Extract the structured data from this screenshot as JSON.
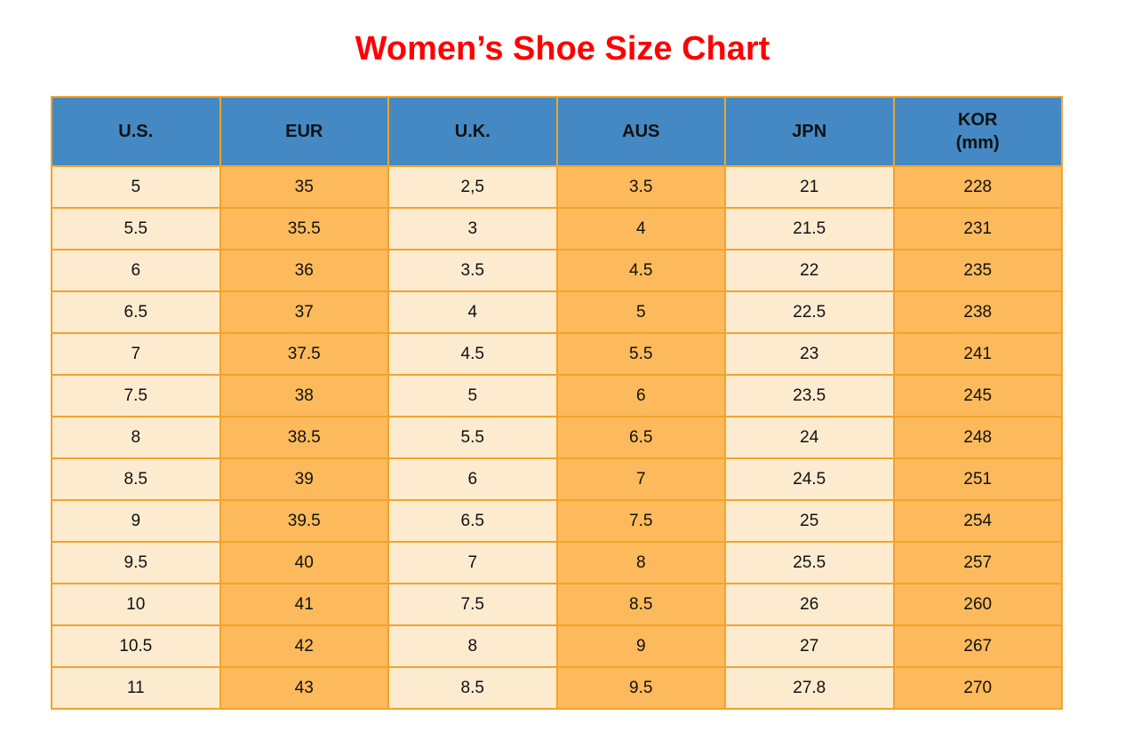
{
  "title": "Women’s Shoe Size Chart",
  "colors": {
    "header_bg": "#4489C4",
    "row_light": "#FDEBD0",
    "row_orange": "#FCBA5C",
    "border": "#F2A32B",
    "title": "#FF0000",
    "text": "#111111"
  },
  "table": {
    "columns": [
      {
        "key": "us",
        "label": "U.S."
      },
      {
        "key": "eur",
        "label": "EUR"
      },
      {
        "key": "uk",
        "label": "U.K."
      },
      {
        "key": "aus",
        "label": "AUS"
      },
      {
        "key": "jpn",
        "label": "JPN"
      },
      {
        "key": "kor",
        "label": "KOR",
        "sublabel": "(mm)"
      }
    ],
    "column_fills": [
      "light",
      "orange",
      "light",
      "orange",
      "light",
      "orange"
    ],
    "rows": [
      [
        "5",
        "35",
        "2,5",
        "3.5",
        "21",
        "228"
      ],
      [
        "5.5",
        "35.5",
        "3",
        "4",
        "21.5",
        "231"
      ],
      [
        "6",
        "36",
        "3.5",
        "4.5",
        "22",
        "235"
      ],
      [
        "6.5",
        "37",
        "4",
        "5",
        "22.5",
        "238"
      ],
      [
        "7",
        "37.5",
        "4.5",
        "5.5",
        "23",
        "241"
      ],
      [
        "7.5",
        "38",
        "5",
        "6",
        "23.5",
        "245"
      ],
      [
        "8",
        "38.5",
        "5.5",
        "6.5",
        "24",
        "248"
      ],
      [
        "8.5",
        "39",
        "6",
        "7",
        "24.5",
        "251"
      ],
      [
        "9",
        "39.5",
        "6.5",
        "7.5",
        "25",
        "254"
      ],
      [
        "9.5",
        "40",
        "7",
        "8",
        "25.5",
        "257"
      ],
      [
        "10",
        "41",
        "7.5",
        "8.5",
        "26",
        "260"
      ],
      [
        "10.5",
        "42",
        "8",
        "9",
        "27",
        "267"
      ],
      [
        "11",
        "43",
        "8.5",
        "9.5",
        "27.8",
        "270"
      ]
    ]
  },
  "chart_data": {
    "type": "table",
    "title": "Women’s Shoe Size Chart",
    "categories": [
      "U.S.",
      "EUR",
      "U.K.",
      "AUS",
      "JPN",
      "KOR (mm)"
    ],
    "series": [
      {
        "name": "U.S.",
        "values": [
          5,
          5.5,
          6,
          6.5,
          7,
          7.5,
          8,
          8.5,
          9,
          9.5,
          10,
          10.5,
          11
        ]
      },
      {
        "name": "EUR",
        "values": [
          35,
          35.5,
          36,
          37,
          37.5,
          38,
          38.5,
          39,
          39.5,
          40,
          41,
          42,
          43
        ]
      },
      {
        "name": "U.K.",
        "values": [
          2.5,
          3,
          3.5,
          4,
          4.5,
          5,
          5.5,
          6,
          6.5,
          7,
          7.5,
          8,
          8.5
        ]
      },
      {
        "name": "AUS",
        "values": [
          3.5,
          4,
          4.5,
          5,
          5.5,
          6,
          6.5,
          7,
          7.5,
          8,
          8.5,
          9,
          9.5
        ]
      },
      {
        "name": "JPN",
        "values": [
          21,
          21.5,
          22,
          22.5,
          23,
          23.5,
          24,
          24.5,
          25,
          25.5,
          26,
          27,
          27.8
        ]
      },
      {
        "name": "KOR (mm)",
        "values": [
          228,
          231,
          235,
          238,
          241,
          245,
          248,
          251,
          254,
          257,
          260,
          267,
          270
        ]
      }
    ]
  }
}
